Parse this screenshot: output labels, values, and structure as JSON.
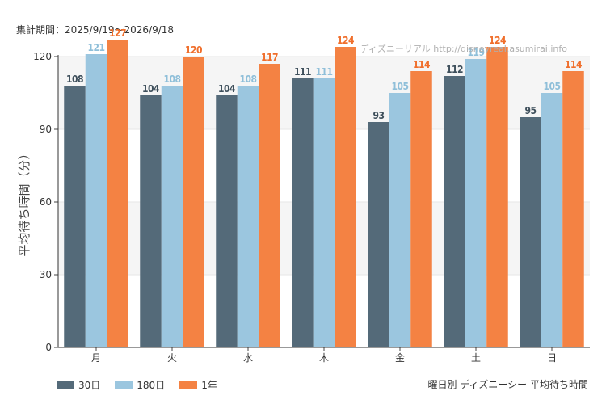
{
  "header": {
    "period": "集計期間：2025/9/19～2026/9/18",
    "watermark": "ディズニーリアル http://disneyreal.asumirai.info"
  },
  "footer": {
    "title": "曜日別 ディズニーシー 平均待ち時間"
  },
  "colors": {
    "30d": "#546a79",
    "180d": "#9bc6df",
    "1y": "#f48243"
  },
  "chart_data": {
    "type": "bar",
    "title": "曜日別 ディズニーシー 平均待ち時間",
    "ylabel": "平均待ち時間（分）",
    "xlabel": "",
    "categories": [
      "月",
      "火",
      "水",
      "木",
      "金",
      "土",
      "日"
    ],
    "ylim": [
      0,
      120
    ],
    "yticks": [
      0,
      30,
      60,
      90,
      120
    ],
    "grid": true,
    "legend_position": "bottom-left",
    "series": [
      {
        "name": "30日",
        "color": "#546a79",
        "label_color": "#3e4f5b",
        "values": [
          108,
          104,
          104,
          111,
          93,
          112,
          95
        ]
      },
      {
        "name": "180日",
        "color": "#9bc6df",
        "label_color": "#8fbfd9",
        "values": [
          121,
          108,
          108,
          111,
          105,
          119,
          105
        ]
      },
      {
        "name": "1年",
        "color": "#f48243",
        "label_color": "#f06f2c",
        "values": [
          127,
          120,
          117,
          124,
          114,
          124,
          114
        ]
      }
    ]
  }
}
